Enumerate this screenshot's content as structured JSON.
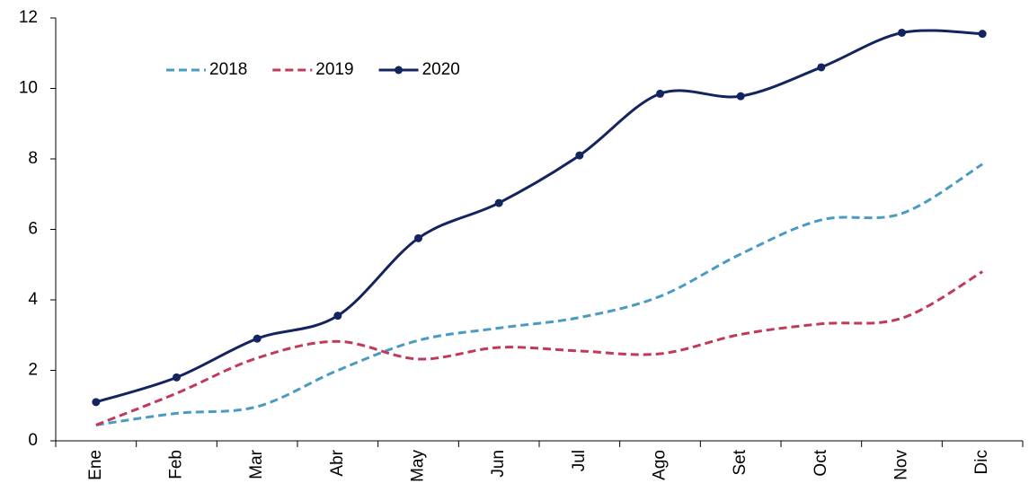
{
  "chart_data": {
    "type": "line",
    "categories": [
      "Ene",
      "Feb",
      "Mar",
      "Abr",
      "May",
      "Jun",
      "Jul",
      "Ago",
      "Set",
      "Oct",
      "Nov",
      "Dic"
    ],
    "series": [
      {
        "name": "2018",
        "color": "#4a9bc4",
        "dashed": true,
        "markers": false,
        "values": [
          0.45,
          0.78,
          0.97,
          2.0,
          2.85,
          3.2,
          3.5,
          4.1,
          5.3,
          6.27,
          6.45,
          7.85
        ]
      },
      {
        "name": "2019",
        "color": "#c0395a",
        "dashed": true,
        "markers": false,
        "values": [
          0.45,
          1.35,
          2.35,
          2.82,
          2.32,
          2.65,
          2.55,
          2.47,
          3.02,
          3.32,
          3.48,
          4.8
        ]
      },
      {
        "name": "2020",
        "color": "#13245e",
        "dashed": false,
        "markers": true,
        "values": [
          1.1,
          1.8,
          2.9,
          3.55,
          5.75,
          6.75,
          8.1,
          9.85,
          9.78,
          10.6,
          11.58,
          11.55
        ]
      }
    ],
    "ylim": [
      0,
      12
    ],
    "yticks": [
      0,
      2,
      4,
      6,
      8,
      10,
      12
    ],
    "grid": false,
    "smooth": true,
    "legend": "top-left"
  }
}
